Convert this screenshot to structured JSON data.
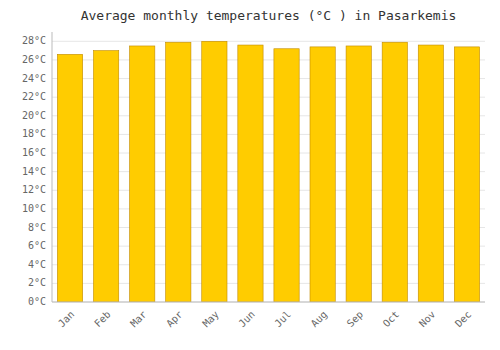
{
  "chart_data": {
    "type": "bar",
    "title": "Average monthly temperatures (°C ) in Pasarkemis",
    "categories": [
      "Jan",
      "Feb",
      "Mar",
      "Apr",
      "May",
      "Jun",
      "Jul",
      "Aug",
      "Sep",
      "Oct",
      "Nov",
      "Dec"
    ],
    "values": [
      26.6,
      27.0,
      27.5,
      27.9,
      28.0,
      27.6,
      27.2,
      27.4,
      27.5,
      27.9,
      27.6,
      27.4
    ],
    "color": "#FFCC00",
    "ylim": [
      0,
      29
    ],
    "yticks": [
      {
        "value": 0,
        "label": "0°C"
      },
      {
        "value": 2,
        "label": "2°C"
      },
      {
        "value": 4,
        "label": "4°C"
      },
      {
        "value": 6,
        "label": "6°C"
      },
      {
        "value": 8,
        "label": "8°C"
      },
      {
        "value": 10,
        "label": "10°C"
      },
      {
        "value": 12,
        "label": "12°C"
      },
      {
        "value": 14,
        "label": "14°C"
      },
      {
        "value": 16,
        "label": "16°C"
      },
      {
        "value": 18,
        "label": "18°C"
      },
      {
        "value": 20,
        "label": "20°C"
      },
      {
        "value": 22,
        "label": "22°C"
      },
      {
        "value": 24,
        "label": "24°C"
      },
      {
        "value": 26,
        "label": "26°C"
      },
      {
        "value": 28,
        "label": "28°C"
      }
    ],
    "grid": true
  }
}
